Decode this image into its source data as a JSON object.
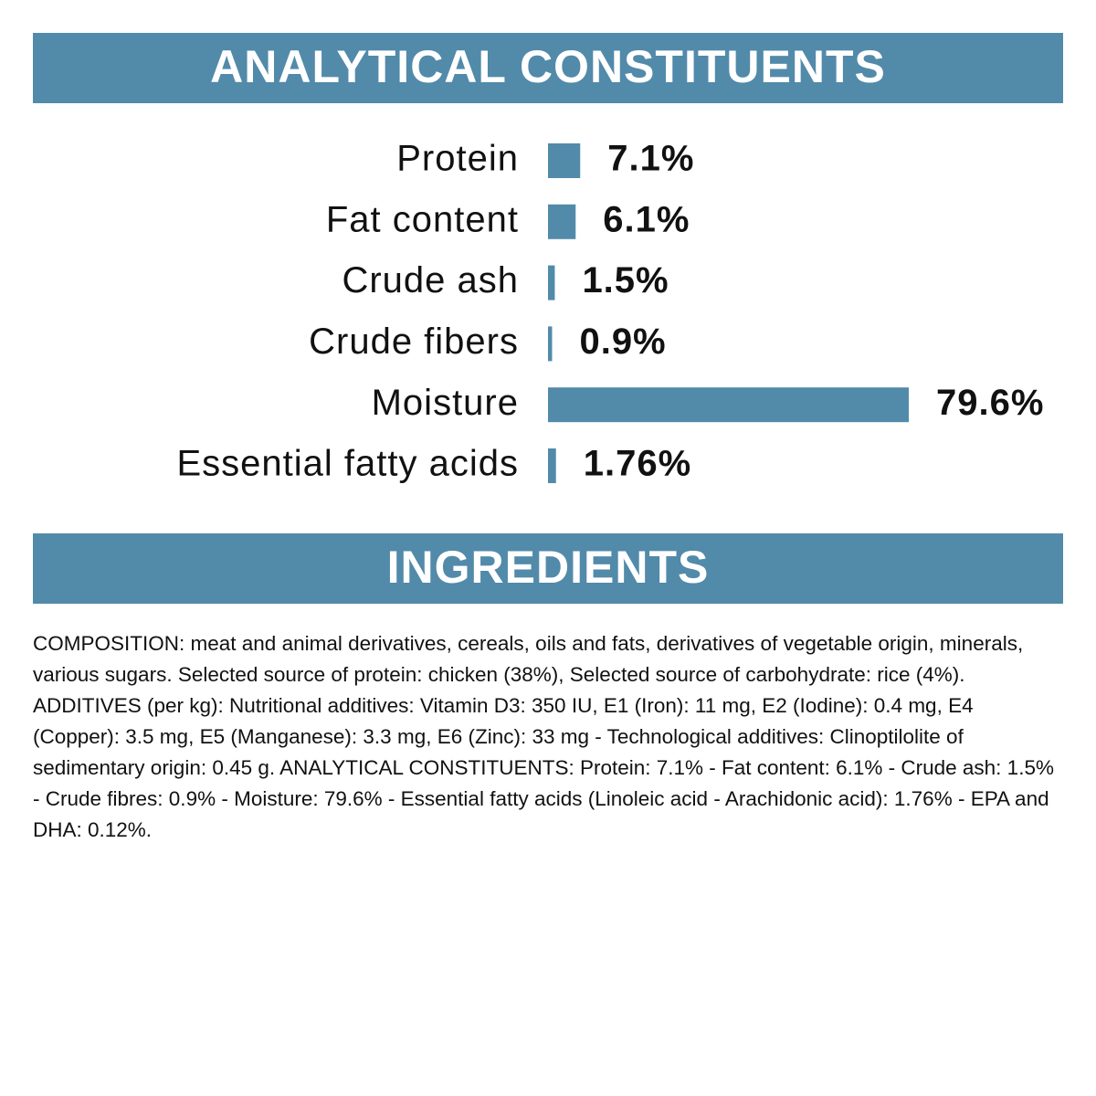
{
  "chart_data": {
    "type": "bar",
    "orientation": "horizontal",
    "title": "ANALYTICAL CONSTITUENTS",
    "categories": [
      "Protein",
      "Fat content",
      "Crude ash",
      "Crude fibers",
      "Moisture",
      "Essential fatty acids"
    ],
    "values": [
      7.1,
      6.1,
      1.5,
      0.9,
      79.6,
      1.76
    ],
    "value_labels": [
      "7.1%",
      "6.1%",
      "1.5%",
      "0.9%",
      "79.6%",
      "1.76%"
    ],
    "color": "#528aaa"
  },
  "ingredients": {
    "title": "INGREDIENTS",
    "text": "COMPOSITION: meat and animal derivatives, cereals, oils and fats, derivatives of vegetable origin, minerals, various sugars. Selected source of protein: chicken (38%), Selected source of carbohydrate: rice (4%). ADDITIVES (per kg): Nutritional additives: Vitamin D3: 350 IU, E1 (Iron): 11 mg, E2 (Iodine): 0.4 mg, E4 (Copper): 3.5 mg, E5 (Manganese): 3.3 mg, E6 (Zinc): 33 mg - Technological additives: Clinoptilolite of sedimentary origin: 0.45 g. ANALYTICAL CONSTITUENTS: Protein: 7.1% - Fat content: 6.1% - Crude ash: 1.5% - Crude fibres: 0.9% - Moisture: 79.6% - Essential fatty acids (Linoleic acid - Arachidonic acid): 1.76% - EPA and DHA: 0.12%."
  }
}
